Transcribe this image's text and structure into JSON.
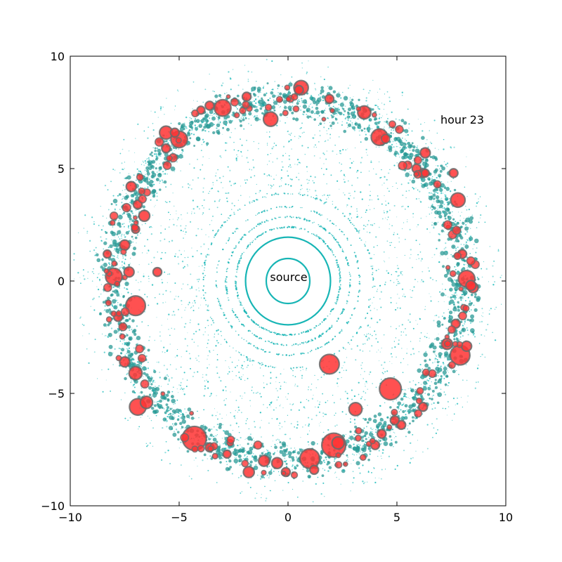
{
  "chart_data": {
    "type": "scatter",
    "title": "",
    "xlabel": "",
    "ylabel": "",
    "xlim": [
      -10,
      10
    ],
    "ylim": [
      -10,
      10
    ],
    "xticks": [
      -10,
      -5,
      0,
      5,
      10
    ],
    "yticks": [
      -10,
      -5,
      0,
      5,
      10
    ],
    "xtick_labels": [
      "−10",
      "−5",
      "0",
      "5",
      "10"
    ],
    "ytick_labels": [
      "−10",
      "−5",
      "0",
      "5",
      "10"
    ],
    "grid": false,
    "annotations": {
      "hour": {
        "text": "hour 23",
        "x": 7.0,
        "y": 7.1
      },
      "source": {
        "text": "source",
        "x": 0.0,
        "y": 0.1
      }
    },
    "colors": {
      "cyan": "#00b3b3",
      "red": "#ff3333",
      "red_edge": "#6a6a6a",
      "axis": "#000000"
    },
    "series": [
      {
        "kind": "rings",
        "color": "#17b5b5",
        "rings": [
          {
            "r": 1.0,
            "solid": true
          },
          {
            "r": 1.95,
            "solid": true
          },
          {
            "r": 2.4,
            "solid": false,
            "density": 0.7
          },
          {
            "r": 2.85,
            "solid": false,
            "density": 0.45
          },
          {
            "r": 3.3,
            "solid": false,
            "density": 0.3
          },
          {
            "r": 3.9,
            "solid": false,
            "density": 0.2
          }
        ]
      },
      {
        "kind": "particles",
        "color": "#00b3b3",
        "count": 5200,
        "r_min": 3.8,
        "r_peak": 8.0,
        "r_max": 9.9
      },
      {
        "kind": "bubbles",
        "color": "#ff3333",
        "points": [
          [
            -7.0,
            -1.1,
            0.45
          ],
          [
            -8.0,
            0.2,
            0.38
          ],
          [
            -6.9,
            -5.6,
            0.38
          ],
          [
            -4.3,
            -7.0,
            0.55
          ],
          [
            -5.0,
            6.3,
            0.38
          ],
          [
            -5.6,
            6.6,
            0.3
          ],
          [
            -3.0,
            7.7,
            0.38
          ],
          [
            -0.8,
            7.2,
            0.33
          ],
          [
            0.6,
            8.6,
            0.33
          ],
          [
            3.5,
            7.5,
            0.3
          ],
          [
            4.2,
            6.4,
            0.38
          ],
          [
            7.8,
            3.6,
            0.33
          ],
          [
            8.2,
            0.1,
            0.38
          ],
          [
            7.9,
            -3.3,
            0.45
          ],
          [
            4.7,
            -4.8,
            0.5
          ],
          [
            1.9,
            -3.7,
            0.45
          ],
          [
            3.1,
            -5.7,
            0.3
          ],
          [
            2.1,
            -7.3,
            0.55
          ],
          [
            1.0,
            -7.9,
            0.45
          ],
          [
            -1.8,
            -8.5,
            0.25
          ],
          [
            -6.6,
            2.9,
            0.25
          ],
          [
            -7.5,
            1.6,
            0.23
          ],
          [
            -7.0,
            -4.1,
            0.3
          ],
          [
            -6.5,
            -5.4,
            0.28
          ],
          [
            -7.5,
            -3.6,
            0.23
          ],
          [
            -5.6,
            5.9,
            0.2
          ],
          [
            -7.2,
            4.2,
            0.23
          ],
          [
            -6.9,
            3.4,
            0.2
          ],
          [
            -7.3,
            0.4,
            0.23
          ],
          [
            -7.8,
            -1.6,
            0.2
          ],
          [
            -6.0,
            0.4,
            0.2
          ],
          [
            -3.6,
            -7.4,
            0.2
          ],
          [
            -1.1,
            -8.0,
            0.25
          ],
          [
            -0.5,
            -8.1,
            0.25
          ],
          [
            1.2,
            -8.4,
            0.2
          ],
          [
            2.3,
            -7.2,
            0.28
          ],
          [
            5.2,
            -6.4,
            0.2
          ],
          [
            6.2,
            -5.6,
            0.2
          ],
          [
            7.3,
            -2.8,
            0.25
          ],
          [
            8.5,
            -0.3,
            0.23
          ],
          [
            7.6,
            4.8,
            0.2
          ],
          [
            6.3,
            5.7,
            0.23
          ],
          [
            6.2,
            4.8,
            0.2
          ],
          [
            5.9,
            5.0,
            0.2
          ],
          [
            1.9,
            8.1,
            0.2
          ],
          [
            0.5,
            8.5,
            0.2
          ],
          [
            -1.9,
            8.2,
            0.2
          ],
          [
            -3.6,
            7.8,
            0.2
          ],
          [
            -4.0,
            7.6,
            0.18
          ],
          [
            -5.2,
            6.6,
            0.2
          ],
          [
            -7.0,
            2.3,
            0.18
          ],
          [
            -8.3,
            1.2,
            0.18
          ],
          [
            8.0,
            1.2,
            0.2
          ],
          [
            8.2,
            -2.9,
            0.23
          ],
          [
            7.7,
            -1.9,
            0.2
          ],
          [
            4.9,
            -6.2,
            0.2
          ],
          [
            4.0,
            -7.3,
            0.2
          ],
          [
            4.3,
            -6.8,
            0.2
          ],
          [
            -2.8,
            -7.7,
            0.18
          ],
          [
            -0.1,
            -8.5,
            0.2
          ],
          [
            6.3,
            4.8,
            0.18
          ],
          [
            8.4,
            -0.2,
            0.23
          ]
        ]
      }
    ]
  }
}
